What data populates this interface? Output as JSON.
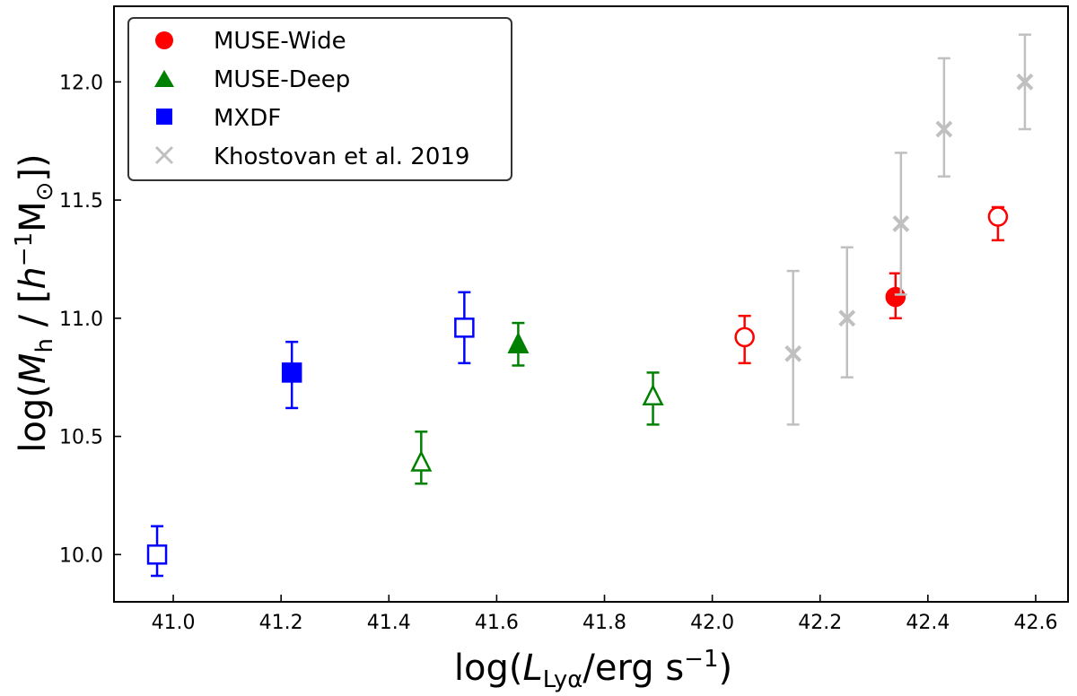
{
  "chart_data": {
    "type": "scatter",
    "xlabel": {
      "pre": "log(",
      "var": "L",
      "sub": "Lyα",
      "post": "/erg s",
      "sup": "−1",
      "close": ")"
    },
    "ylabel": {
      "pre": "log(",
      "var": "M",
      "sub": "h",
      "mid": " / [",
      "hvar": "h",
      "sup": "−1",
      "msym": "M",
      "msub": "⊙",
      "close": "])"
    },
    "xlim": [
      40.89,
      42.66
    ],
    "ylim": [
      9.8,
      12.32
    ],
    "xticks": [
      41.0,
      41.2,
      41.4,
      41.6,
      41.8,
      42.0,
      42.2,
      42.4,
      42.6
    ],
    "yticks": [
      10.0,
      10.5,
      11.0,
      11.5,
      12.0
    ],
    "legend_position": "top-left",
    "series": [
      {
        "name": "MUSE-Wide",
        "color": "#ff0000",
        "marker": "circle",
        "points": [
          {
            "x": 42.06,
            "y": 10.92,
            "ylo": 10.81,
            "yhi": 11.01,
            "filled": false
          },
          {
            "x": 42.34,
            "y": 11.09,
            "ylo": 11.0,
            "yhi": 11.19,
            "filled": true
          },
          {
            "x": 42.53,
            "y": 11.43,
            "ylo": 11.33,
            "yhi": 11.47,
            "filled": false
          }
        ]
      },
      {
        "name": "MUSE-Deep",
        "color": "#008000",
        "marker": "triangle",
        "points": [
          {
            "x": 41.46,
            "y": 10.39,
            "ylo": 10.3,
            "yhi": 10.52,
            "filled": false
          },
          {
            "x": 41.64,
            "y": 10.89,
            "ylo": 10.8,
            "yhi": 10.98,
            "filled": true
          },
          {
            "x": 41.89,
            "y": 10.67,
            "ylo": 10.55,
            "yhi": 10.77,
            "filled": false
          }
        ]
      },
      {
        "name": "MXDF",
        "color": "#0000ff",
        "marker": "square",
        "points": [
          {
            "x": 40.97,
            "y": 10.0,
            "ylo": 9.91,
            "yhi": 10.12,
            "filled": false
          },
          {
            "x": 41.22,
            "y": 10.77,
            "ylo": 10.62,
            "yhi": 10.9,
            "filled": true
          },
          {
            "x": 41.54,
            "y": 10.96,
            "ylo": 10.81,
            "yhi": 11.11,
            "filled": false
          }
        ]
      },
      {
        "name": "Khostovan et al. 2019",
        "color": "#c0c0c0",
        "marker": "x",
        "points": [
          {
            "x": 42.15,
            "y": 10.85,
            "ylo": 10.55,
            "yhi": 11.2,
            "filled": true
          },
          {
            "x": 42.25,
            "y": 11.0,
            "ylo": 10.75,
            "yhi": 11.3,
            "filled": true
          },
          {
            "x": 42.35,
            "y": 11.4,
            "ylo": 11.1,
            "yhi": 11.7,
            "filled": true
          },
          {
            "x": 42.43,
            "y": 11.8,
            "ylo": 11.6,
            "yhi": 12.1,
            "filled": true
          },
          {
            "x": 42.58,
            "y": 12.0,
            "ylo": 11.8,
            "yhi": 12.2,
            "filled": true
          }
        ]
      }
    ]
  }
}
